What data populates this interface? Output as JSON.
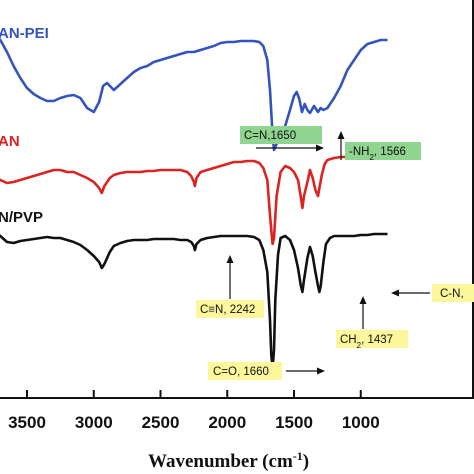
{
  "chart_data": {
    "type": "line",
    "xlabel_main": "Wavenumber (cm",
    "xlabel_sup": "-1",
    "xlabel_end": ")",
    "x_reversed": true,
    "xlim": [
      3750,
      800
    ],
    "x_ticks": [
      3500,
      3000,
      2500,
      2000,
      1500,
      1000
    ],
    "x_tick_labels": [
      "3500",
      "3000",
      "2500",
      "2000",
      "1500",
      "1000"
    ],
    "series": [
      {
        "name": "AN-PEI",
        "color": "#3355bb",
        "points": [
          [
            3750,
            34
          ],
          [
            3700,
            40
          ],
          [
            3650,
            52
          ],
          [
            3600,
            66
          ],
          [
            3550,
            78
          ],
          [
            3500,
            88
          ],
          [
            3450,
            94
          ],
          [
            3400,
            98
          ],
          [
            3350,
            101
          ],
          [
            3300,
            101
          ],
          [
            3250,
            98
          ],
          [
            3200,
            96
          ],
          [
            3150,
            95
          ],
          [
            3100,
            98
          ],
          [
            3050,
            108
          ],
          [
            3000,
            112
          ],
          [
            2960,
            102
          ],
          [
            2930,
            86
          ],
          [
            2900,
            83
          ],
          [
            2850,
            90
          ],
          [
            2800,
            84
          ],
          [
            2750,
            78
          ],
          [
            2700,
            72
          ],
          [
            2650,
            68
          ],
          [
            2600,
            66
          ],
          [
            2550,
            62
          ],
          [
            2500,
            60
          ],
          [
            2450,
            58
          ],
          [
            2400,
            56
          ],
          [
            2350,
            54
          ],
          [
            2300,
            52
          ],
          [
            2250,
            52
          ],
          [
            2200,
            50
          ],
          [
            2150,
            48
          ],
          [
            2100,
            46
          ],
          [
            2050,
            43
          ],
          [
            2000,
            42
          ],
          [
            1950,
            42
          ],
          [
            1900,
            41
          ],
          [
            1850,
            41
          ],
          [
            1800,
            41
          ],
          [
            1760,
            42
          ],
          [
            1730,
            46
          ],
          [
            1700,
            60
          ],
          [
            1680,
            90
          ],
          [
            1660,
            135
          ],
          [
            1650,
            150
          ],
          [
            1630,
            144
          ],
          [
            1600,
            132
          ],
          [
            1566,
            126
          ],
          [
            1530,
            110
          ],
          [
            1500,
            96
          ],
          [
            1480,
            92
          ],
          [
            1460,
            99
          ],
          [
            1440,
            112
          ],
          [
            1420,
            104
          ],
          [
            1400,
            110
          ],
          [
            1380,
            113
          ],
          [
            1350,
            106
          ],
          [
            1320,
            112
          ],
          [
            1300,
            108
          ],
          [
            1280,
            110
          ],
          [
            1250,
            108
          ],
          [
            1200,
            98
          ],
          [
            1150,
            86
          ],
          [
            1100,
            70
          ],
          [
            1050,
            60
          ],
          [
            1000,
            50
          ],
          [
            950,
            44
          ],
          [
            900,
            42
          ],
          [
            850,
            40
          ],
          [
            800,
            40
          ]
        ]
      },
      {
        "name": "AN",
        "color": "#dd2222",
        "points": [
          [
            3750,
            176
          ],
          [
            3700,
            180
          ],
          [
            3650,
            183
          ],
          [
            3600,
            182
          ],
          [
            3550,
            180
          ],
          [
            3500,
            178
          ],
          [
            3450,
            176
          ],
          [
            3400,
            174
          ],
          [
            3350,
            172
          ],
          [
            3300,
            170
          ],
          [
            3250,
            170
          ],
          [
            3200,
            172
          ],
          [
            3150,
            172
          ],
          [
            3100,
            175
          ],
          [
            3050,
            178
          ],
          [
            3000,
            182
          ],
          [
            2960,
            188
          ],
          [
            2940,
            193
          ],
          [
            2920,
            186
          ],
          [
            2880,
            178
          ],
          [
            2850,
            175
          ],
          [
            2800,
            173
          ],
          [
            2750,
            172
          ],
          [
            2700,
            172
          ],
          [
            2650,
            172
          ],
          [
            2600,
            171
          ],
          [
            2550,
            171
          ],
          [
            2500,
            170
          ],
          [
            2450,
            170
          ],
          [
            2400,
            170
          ],
          [
            2350,
            170
          ],
          [
            2300,
            172
          ],
          [
            2270,
            176
          ],
          [
            2250,
            182
          ],
          [
            2242,
            186
          ],
          [
            2230,
            178
          ],
          [
            2200,
            172
          ],
          [
            2150,
            170
          ],
          [
            2100,
            168
          ],
          [
            2050,
            166
          ],
          [
            2000,
            164
          ],
          [
            1950,
            162
          ],
          [
            1900,
            162
          ],
          [
            1850,
            161
          ],
          [
            1800,
            161
          ],
          [
            1760,
            163
          ],
          [
            1730,
            168
          ],
          [
            1700,
            180
          ],
          [
            1680,
            215
          ],
          [
            1665,
            238
          ],
          [
            1660,
            244
          ],
          [
            1650,
            238
          ],
          [
            1630,
            196
          ],
          [
            1600,
            172
          ],
          [
            1566,
            166
          ],
          [
            1530,
            168
          ],
          [
            1500,
            172
          ],
          [
            1470,
            180
          ],
          [
            1450,
            196
          ],
          [
            1437,
            208
          ],
          [
            1425,
            196
          ],
          [
            1400,
            182
          ],
          [
            1380,
            170
          ],
          [
            1360,
            178
          ],
          [
            1340,
            190
          ],
          [
            1320,
            196
          ],
          [
            1310,
            188
          ],
          [
            1290,
            174
          ],
          [
            1270,
            164
          ],
          [
            1250,
            160
          ],
          [
            1200,
            158
          ],
          [
            1150,
            157
          ],
          [
            1100,
            157
          ],
          [
            1050,
            157
          ],
          [
            1000,
            158
          ],
          [
            950,
            158
          ],
          [
            900,
            158
          ],
          [
            850,
            158
          ],
          [
            800,
            158
          ]
        ]
      },
      {
        "name": "AN/PVP",
        "color": "#111111",
        "points": [
          [
            3750,
            232
          ],
          [
            3700,
            236
          ],
          [
            3650,
            242
          ],
          [
            3600,
            243
          ],
          [
            3550,
            241
          ],
          [
            3500,
            240
          ],
          [
            3450,
            239
          ],
          [
            3400,
            238
          ],
          [
            3350,
            237
          ],
          [
            3300,
            238
          ],
          [
            3250,
            238
          ],
          [
            3200,
            240
          ],
          [
            3150,
            242
          ],
          [
            3100,
            245
          ],
          [
            3050,
            250
          ],
          [
            3000,
            256
          ],
          [
            2960,
            262
          ],
          [
            2940,
            268
          ],
          [
            2920,
            264
          ],
          [
            2880,
            252
          ],
          [
            2850,
            246
          ],
          [
            2800,
            243
          ],
          [
            2750,
            241
          ],
          [
            2700,
            240
          ],
          [
            2650,
            240
          ],
          [
            2600,
            240
          ],
          [
            2550,
            239
          ],
          [
            2500,
            239
          ],
          [
            2450,
            239
          ],
          [
            2400,
            239
          ],
          [
            2350,
            240
          ],
          [
            2300,
            240
          ],
          [
            2270,
            242
          ],
          [
            2250,
            246
          ],
          [
            2242,
            250
          ],
          [
            2230,
            244
          ],
          [
            2200,
            240
          ],
          [
            2150,
            238
          ],
          [
            2100,
            237
          ],
          [
            2050,
            236
          ],
          [
            2000,
            236
          ],
          [
            1950,
            236
          ],
          [
            1900,
            236
          ],
          [
            1850,
            236
          ],
          [
            1800,
            237
          ],
          [
            1760,
            240
          ],
          [
            1730,
            250
          ],
          [
            1700,
            272
          ],
          [
            1680,
            320
          ],
          [
            1670,
            355
          ],
          [
            1660,
            368
          ],
          [
            1650,
            350
          ],
          [
            1640,
            300
          ],
          [
            1620,
            255
          ],
          [
            1600,
            238
          ],
          [
            1566,
            236
          ],
          [
            1530,
            240
          ],
          [
            1500,
            250
          ],
          [
            1470,
            268
          ],
          [
            1450,
            285
          ],
          [
            1437,
            292
          ],
          [
            1425,
            280
          ],
          [
            1400,
            258
          ],
          [
            1380,
            247
          ],
          [
            1360,
            256
          ],
          [
            1340,
            272
          ],
          [
            1320,
            286
          ],
          [
            1310,
            292
          ],
          [
            1300,
            286
          ],
          [
            1280,
            262
          ],
          [
            1260,
            244
          ],
          [
            1230,
            238
          ],
          [
            1200,
            236
          ],
          [
            1150,
            236
          ],
          [
            1100,
            236
          ],
          [
            1050,
            236
          ],
          [
            1000,
            235
          ],
          [
            950,
            235
          ],
          [
            900,
            234
          ],
          [
            850,
            234
          ],
          [
            800,
            234
          ]
        ]
      }
    ]
  },
  "series_labels": {
    "an_pei": "AN-PEI",
    "an": "AN",
    "an_pvp": "N/PVP"
  },
  "annotations": {
    "cn_1650": "C=N,1650",
    "nh2_prefix": "-NH",
    "nh2_sub": "2",
    "nh2_suffix": ", 1566",
    "cn_2242": "C≡N, 2242",
    "ch2_prefix": "CH",
    "ch2_sub": "2",
    "ch2_suffix": ", 1437",
    "co_1660": "C=O, 1660",
    "cn_partial": "C-N,"
  },
  "colors": {
    "green_box": "#8fd48f",
    "yellow_box": "#fbf79a",
    "an_pei": "#3355bb",
    "an": "#dd2222",
    "an_pvp": "#111111"
  }
}
